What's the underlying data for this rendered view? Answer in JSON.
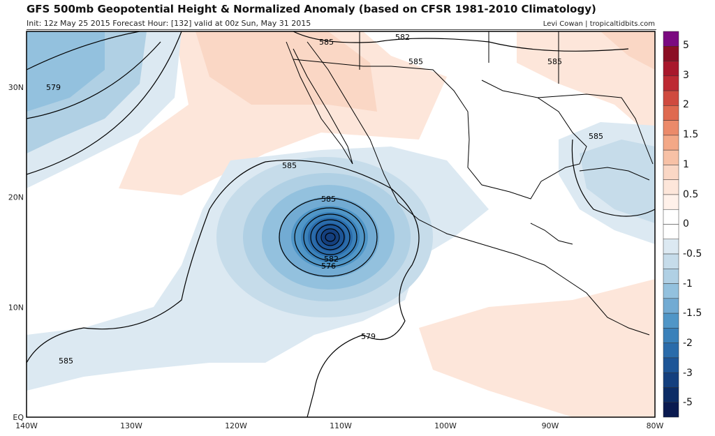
{
  "header": {
    "title": "GFS 500mb Geopotential Height & Normalized Anomaly (based on CFSR 1981-2010 Climatology)",
    "subtitle": "Init: 12z May 25 2015   Forecast Hour: [132]   valid at 00z Sun, May 31 2015",
    "credit": "Levi Cowan | tropicaltidbits.com"
  },
  "map": {
    "lon_labels": [
      "140W",
      "130W",
      "120W",
      "110W",
      "100W",
      "90W",
      "80W"
    ],
    "lat_labels": [
      "EQ",
      "10N",
      "20N",
      "30N"
    ],
    "contour_labels": [
      "579",
      "585",
      "585",
      "582",
      "585",
      "585",
      "585",
      "582",
      "576",
      "579",
      "585",
      "585"
    ],
    "low_center": {
      "lon": -111.5,
      "lat": 16.3
    }
  },
  "colorbar": {
    "labels": [
      "5",
      "3",
      "2",
      "1.5",
      "1",
      "0.5",
      "0",
      "-0.5",
      "-1",
      "-1.5",
      "-2",
      "-3",
      "-5"
    ],
    "colors": [
      "#7b0a80",
      "#8b0e24",
      "#a8182c",
      "#bd2a33",
      "#cf4a3f",
      "#df6a50",
      "#eb8a6a",
      "#f3a887",
      "#f7c1a6",
      "#fad7c5",
      "#fde6da",
      "#fff1ea",
      "#ffffff",
      "#ffffff",
      "#dce9f2",
      "#c6dcea",
      "#b0d0e4",
      "#93c1de",
      "#72abd3",
      "#5096c7",
      "#3a81ba",
      "#2a6baa",
      "#1d5597",
      "#143f7e",
      "#0c2c66",
      "#0a1a50"
    ]
  }
}
